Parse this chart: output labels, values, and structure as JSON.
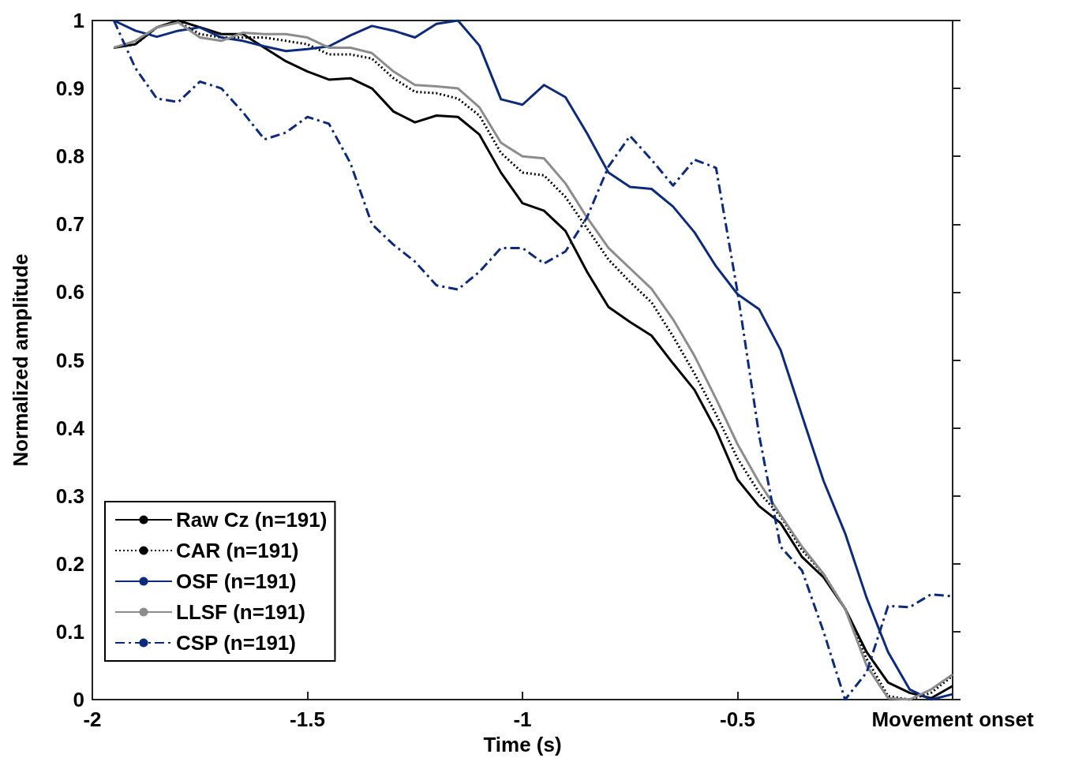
{
  "chart_data": {
    "type": "line",
    "xlabel": "Time (s)",
    "ylabel": "Normalized amplitude",
    "x": [
      -1.95,
      -1.9,
      -1.85,
      -1.8,
      -1.75,
      -1.7,
      -1.65,
      -1.6,
      -1.55,
      -1.5,
      -1.45,
      -1.4,
      -1.35,
      -1.3,
      -1.25,
      -1.2,
      -1.15,
      -1.1,
      -1.05,
      -1.0,
      -0.95,
      -0.9,
      -0.85,
      -0.8,
      -0.75,
      -0.7,
      -0.65,
      -0.6,
      -0.55,
      -0.5,
      -0.45,
      -0.4,
      -0.35,
      -0.3,
      -0.25,
      -0.2,
      -0.15,
      -0.1,
      -0.05,
      0
    ],
    "series": [
      {
        "name": "Raw Cz (n=191)",
        "color": "#000000",
        "line_style": "solid",
        "values": [
          0.96,
          0.965,
          0.99,
          1.0,
          0.99,
          0.98,
          0.98,
          0.96,
          0.94,
          0.925,
          0.913,
          0.915,
          0.9,
          0.866,
          0.85,
          0.86,
          0.858,
          0.832,
          0.776,
          0.731,
          0.72,
          0.69,
          0.63,
          0.578,
          0.556,
          0.536,
          0.495,
          0.456,
          0.397,
          0.324,
          0.285,
          0.26,
          0.21,
          0.18,
          0.134,
          0.07,
          0.025,
          0.01,
          0.002,
          0.02
        ]
      },
      {
        "name": "CAR (n=191)",
        "color": "#000000",
        "line_style": "dotted",
        "values": [
          0.96,
          0.965,
          0.99,
          0.998,
          0.98,
          0.975,
          0.975,
          0.975,
          0.97,
          0.965,
          0.95,
          0.95,
          0.944,
          0.915,
          0.895,
          0.893,
          0.885,
          0.86,
          0.805,
          0.776,
          0.772,
          0.74,
          0.694,
          0.648,
          0.615,
          0.585,
          0.535,
          0.48,
          0.42,
          0.355,
          0.305,
          0.27,
          0.22,
          0.185,
          0.134,
          0.06,
          0.005,
          0.0,
          0.01,
          0.035
        ]
      },
      {
        "name": "OSF (n=191)",
        "color": "#0d2b7c",
        "line_style": "solid",
        "values": [
          1.0,
          0.985,
          0.976,
          0.985,
          0.99,
          0.975,
          0.97,
          0.962,
          0.955,
          0.958,
          0.962,
          0.978,
          0.992,
          0.985,
          0.975,
          0.995,
          1.0,
          0.963,
          0.884,
          0.876,
          0.905,
          0.887,
          0.834,
          0.776,
          0.755,
          0.752,
          0.726,
          0.688,
          0.638,
          0.597,
          0.575,
          0.515,
          0.418,
          0.322,
          0.245,
          0.15,
          0.07,
          0.015,
          0.0,
          0.008
        ]
      },
      {
        "name": "LLSF (n=191)",
        "color": "#8c8c8c",
        "line_style": "solid",
        "values": [
          0.96,
          0.97,
          0.99,
          0.997,
          0.975,
          0.97,
          0.982,
          0.98,
          0.98,
          0.975,
          0.96,
          0.96,
          0.952,
          0.925,
          0.905,
          0.903,
          0.9,
          0.872,
          0.82,
          0.8,
          0.797,
          0.76,
          0.71,
          0.665,
          0.635,
          0.605,
          0.56,
          0.506,
          0.443,
          0.376,
          0.32,
          0.272,
          0.225,
          0.185,
          0.134,
          0.05,
          0.002,
          0.0,
          0.015,
          0.037
        ]
      },
      {
        "name": "CSP (n=191)",
        "color": "#0d2b7c",
        "line_style": "dashdot",
        "values": [
          1.0,
          0.93,
          0.885,
          0.88,
          0.91,
          0.9,
          0.865,
          0.825,
          0.835,
          0.858,
          0.848,
          0.79,
          0.7,
          0.67,
          0.645,
          0.61,
          0.604,
          0.63,
          0.665,
          0.665,
          0.642,
          0.66,
          0.71,
          0.785,
          0.83,
          0.795,
          0.757,
          0.795,
          0.783,
          0.6,
          0.39,
          0.225,
          0.19,
          0.1,
          0.0,
          0.04,
          0.138,
          0.136,
          0.155,
          0.152
        ]
      }
    ],
    "xlim": [
      -2,
      0
    ],
    "xticks": [
      -2,
      -1.5,
      -1,
      -0.5,
      {
        "value": 0,
        "label": "Movement onset"
      }
    ],
    "ylim": [
      0,
      1
    ],
    "yticks": [
      0,
      0.1,
      0.2,
      0.3,
      0.4,
      0.5,
      0.6,
      0.7,
      0.8,
      0.9,
      1
    ],
    "grid": false,
    "legend": "bottom left",
    "marker": "none"
  }
}
